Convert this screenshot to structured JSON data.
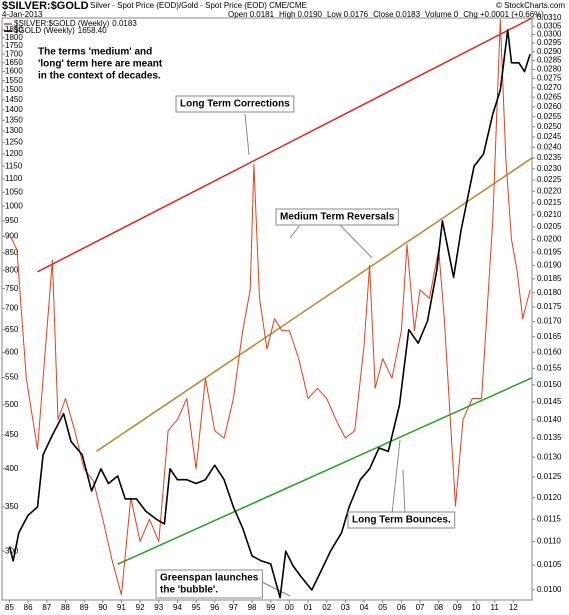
{
  "chart_data": {
    "type": "line",
    "title": "$SILVER:$GOLD",
    "subtitle": "Silver - Spot Price (EOD)/Gold - Spot Price (EOD) CME/CME",
    "date": "4-Jan-2013",
    "stats": [
      {
        "label": "Open",
        "value": "0.0181"
      },
      {
        "label": "High",
        "value": "0.0190"
      },
      {
        "label": "Low",
        "value": "0.0176"
      },
      {
        "label": "Close",
        "value": "0.0183"
      },
      {
        "label": "Volume",
        "value": "0"
      },
      {
        "label": "Chg",
        "value": "+0.0001 (+0.66%)"
      }
    ],
    "watermark": "© StockCharts.com",
    "log_scale": true,
    "xlim": [
      1984.6,
      2013.0
    ],
    "xticks": [
      {
        "value": 1985,
        "label": "85"
      },
      {
        "value": 1986,
        "label": "86"
      },
      {
        "value": 1987,
        "label": "87"
      },
      {
        "value": 1988,
        "label": "88"
      },
      {
        "value": 1989,
        "label": "89"
      },
      {
        "value": 1990,
        "label": "90"
      },
      {
        "value": 1991,
        "label": "91"
      },
      {
        "value": 1992,
        "label": "92"
      },
      {
        "value": 1993,
        "label": "93"
      },
      {
        "value": 1994,
        "label": "94"
      },
      {
        "value": 1995,
        "label": "95"
      },
      {
        "value": 1996,
        "label": "96"
      },
      {
        "value": 1997,
        "label": "97"
      },
      {
        "value": 1998,
        "label": "98"
      },
      {
        "value": 1999,
        "label": "99"
      },
      {
        "value": 2000,
        "label": "00"
      },
      {
        "value": 2001,
        "label": "01"
      },
      {
        "value": 2002,
        "label": "02"
      },
      {
        "value": 2003,
        "label": "03"
      },
      {
        "value": 2004,
        "label": "04"
      },
      {
        "value": 2005,
        "label": "05"
      },
      {
        "value": 2006,
        "label": "06"
      },
      {
        "value": 2007,
        "label": "07"
      },
      {
        "value": 2008,
        "label": "08"
      },
      {
        "value": 2009,
        "label": "09"
      },
      {
        "value": 2010,
        "label": "10"
      },
      {
        "value": 2011,
        "label": "11"
      },
      {
        "value": 2012,
        "label": "12"
      }
    ],
    "ylim": [
      253,
      1929
    ],
    "yticks": [
      1850,
      1800,
      1750,
      1700,
      1650,
      1600,
      1550,
      1500,
      1450,
      1400,
      1350,
      1300,
      1250,
      1200,
      1150,
      1100,
      1050,
      1000,
      950,
      900,
      850,
      800,
      750,
      700,
      650,
      600,
      550,
      500,
      450,
      400,
      350,
      300
    ],
    "y2lim": [
      0.0098,
      0.031
    ],
    "y2ticks": [
      {
        "value": 0.031,
        "label": "0.0310"
      },
      {
        "value": 0.0305,
        "label": "0.0305"
      },
      {
        "value": 0.03,
        "label": "0.0300"
      },
      {
        "value": 0.0295,
        "label": "0.0295"
      },
      {
        "value": 0.029,
        "label": "0.0290"
      },
      {
        "value": 0.0285,
        "label": "0.0285"
      },
      {
        "value": 0.028,
        "label": "0.0280"
      },
      {
        "value": 0.0275,
        "label": "0.0275"
      },
      {
        "value": 0.027,
        "label": "0.0270"
      },
      {
        "value": 0.0265,
        "label": "0.0265"
      },
      {
        "value": 0.026,
        "label": "0.0260"
      },
      {
        "value": 0.0255,
        "label": "0.0255"
      },
      {
        "value": 0.025,
        "label": "0.0250"
      },
      {
        "value": 0.0245,
        "label": "0.0245"
      },
      {
        "value": 0.024,
        "label": "0.0240"
      },
      {
        "value": 0.0235,
        "label": "0.0235"
      },
      {
        "value": 0.023,
        "label": "0.0230"
      },
      {
        "value": 0.0225,
        "label": "0.0225"
      },
      {
        "value": 0.022,
        "label": "0.0220"
      },
      {
        "value": 0.0215,
        "label": "0.0215"
      },
      {
        "value": 0.021,
        "label": "0.0210"
      },
      {
        "value": 0.0205,
        "label": "0.0205"
      },
      {
        "value": 0.02,
        "label": "0.0200"
      },
      {
        "value": 0.0195,
        "label": "0.0195"
      },
      {
        "value": 0.019,
        "label": "0.0190"
      },
      {
        "value": 0.0185,
        "label": "0.0185"
      },
      {
        "value": 0.018,
        "label": "0.0180"
      },
      {
        "value": 0.0175,
        "label": "0.0175"
      },
      {
        "value": 0.017,
        "label": "0.0170"
      },
      {
        "value": 0.0165,
        "label": "0.0165"
      },
      {
        "value": 0.016,
        "label": "0.0160"
      },
      {
        "value": 0.0155,
        "label": "0.0155"
      },
      {
        "value": 0.015,
        "label": "0.0150"
      },
      {
        "value": 0.0145,
        "label": "0.0145"
      },
      {
        "value": 0.014,
        "label": "0.0140"
      },
      {
        "value": 0.0135,
        "label": "0.0135"
      },
      {
        "value": 0.013,
        "label": "0.0130"
      },
      {
        "value": 0.0125,
        "label": "0.0125"
      },
      {
        "value": 0.012,
        "label": "0.0120"
      },
      {
        "value": 0.0115,
        "label": "0.0115"
      },
      {
        "value": 0.011,
        "label": "0.0110"
      },
      {
        "value": 0.0105,
        "label": "0.0105"
      },
      {
        "value": 0.01,
        "label": "0.0100"
      }
    ],
    "series": [
      {
        "name": "$SILVER:$GOLD (Weekly)",
        "legend_value": "0.0183",
        "color": "#e3411c",
        "axis": "y2",
        "x": [
          1985.0,
          1985.4,
          1985.9,
          1986.5,
          1987.3,
          1987.6,
          1988.0,
          1988.5,
          1989.0,
          1989.5,
          1990.0,
          1990.5,
          1991.0,
          1991.5,
          1992.0,
          1992.5,
          1993.0,
          1993.5,
          1994.0,
          1994.5,
          1995.0,
          1995.5,
          1996.0,
          1996.5,
          1997.0,
          1997.5,
          1997.9,
          1998.1,
          1998.4,
          1998.8,
          1999.2,
          1999.6,
          2000.0,
          2000.5,
          2001.0,
          2001.5,
          2002.0,
          2002.5,
          2003.0,
          2003.5,
          2004.0,
          2004.3,
          2004.6,
          2005.0,
          2005.5,
          2006.0,
          2006.3,
          2006.7,
          2007.0,
          2007.5,
          2008.0,
          2008.3,
          2008.9,
          2009.3,
          2009.8,
          2010.3,
          2010.9,
          2011.3,
          2011.6,
          2011.9,
          2012.2,
          2012.5,
          2012.9
        ],
        "values": [
          0.0202,
          0.0196,
          0.0152,
          0.0132,
          0.0192,
          0.014,
          0.0146,
          0.0137,
          0.0127,
          0.0124,
          0.0115,
          0.0106,
          0.0099,
          0.012,
          0.011,
          0.0115,
          0.011,
          0.0137,
          0.014,
          0.0146,
          0.0127,
          0.0152,
          0.0137,
          0.0135,
          0.0146,
          0.0167,
          0.0181,
          0.0232,
          0.0178,
          0.0161,
          0.0171,
          0.0167,
          0.0167,
          0.0158,
          0.0146,
          0.0149,
          0.0146,
          0.014,
          0.0135,
          0.0137,
          0.0162,
          0.019,
          0.0149,
          0.0158,
          0.0152,
          0.0167,
          0.0198,
          0.0167,
          0.0181,
          0.0178,
          0.0196,
          0.0171,
          0.0118,
          0.014,
          0.0146,
          0.0146,
          0.0208,
          0.0309,
          0.0234,
          0.02,
          0.0188,
          0.0171,
          0.0181
        ]
      },
      {
        "name": "$GOLD (Weekly)",
        "legend_value": "1658.40",
        "color": "#000000",
        "axis": "y",
        "x": [
          1985.0,
          1985.2,
          1985.5,
          1986.0,
          1986.5,
          1986.8,
          1987.3,
          1987.9,
          1988.3,
          1988.9,
          1989.4,
          1989.9,
          1990.3,
          1990.8,
          1991.2,
          1991.8,
          1992.3,
          1992.9,
          1993.3,
          1993.6,
          1994.0,
          1994.5,
          1995.0,
          1995.5,
          1996.0,
          1996.5,
          1997.0,
          1997.5,
          1998.0,
          1998.5,
          1999.0,
          1999.5,
          1999.8,
          2000.2,
          2000.6,
          2001.2,
          2001.7,
          2002.2,
          2002.8,
          2003.2,
          2003.8,
          2004.3,
          2004.8,
          2005.3,
          2005.9,
          2006.4,
          2006.9,
          2007.4,
          2007.9,
          2008.2,
          2008.8,
          2009.2,
          2009.9,
          2010.4,
          2010.9,
          2011.3,
          2011.7,
          2011.9,
          2012.3,
          2012.6,
          2012.9
        ],
        "values": [
          305,
          290,
          320,
          340,
          350,
          420,
          450,
          485,
          440,
          420,
          370,
          400,
          380,
          390,
          360,
          360,
          345,
          335,
          330,
          400,
          385,
          385,
          380,
          385,
          405,
          385,
          350,
          325,
          295,
          290,
          287,
          255,
          300,
          285,
          275,
          262,
          280,
          300,
          320,
          350,
          385,
          400,
          430,
          425,
          500,
          650,
          620,
          670,
          800,
          950,
          780,
          920,
          1150,
          1200,
          1380,
          1500,
          1850,
          1650,
          1650,
          1600,
          1700
        ]
      }
    ],
    "trendlines": [
      {
        "color": "#e8231a",
        "axis": "y2",
        "x": [
          1986.5,
          2013.0
        ],
        "values": [
          0.01876,
          0.031
        ]
      },
      {
        "color": "#b8862a",
        "axis": "y2",
        "x": [
          1989.66,
          2013.0
        ],
        "values": [
          0.01315,
          0.0235
        ]
      },
      {
        "color": "#1fa51f",
        "axis": "y2",
        "x": [
          1990.8,
          2013.0
        ],
        "values": [
          0.01052,
          0.01521
        ]
      }
    ],
    "annotations": [
      {
        "lines": [
          "The terms 'medium' and",
          "'long' term here are meant",
          "in the context of decades."
        ]
      },
      {
        "lines": [
          "Long Term Corrections"
        ]
      },
      {
        "lines": [
          "Medium Term Reversals"
        ]
      },
      {
        "lines": [
          "Long Term Bounces."
        ]
      },
      {
        "lines": [
          "Greenspan launches",
          "the 'bubble'."
        ]
      }
    ]
  }
}
